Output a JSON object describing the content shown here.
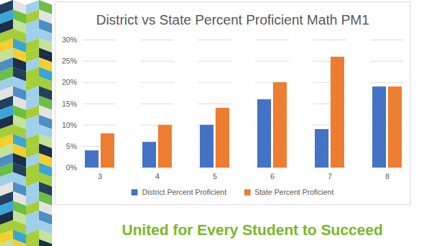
{
  "chart_data": {
    "type": "bar",
    "title": "District vs State Percent Proficient Math PM1",
    "categories": [
      "3",
      "4",
      "5",
      "6",
      "7",
      "8"
    ],
    "series": [
      {
        "name": "District Percent Proficient",
        "color": "#4472c4",
        "values": [
          4,
          6,
          10,
          16,
          9,
          19
        ]
      },
      {
        "name": "State Percent Proficient",
        "color": "#ed7d31",
        "values": [
          8,
          10,
          14,
          20,
          26,
          19
        ]
      }
    ],
    "ylim": [
      0,
      30
    ],
    "yticks": [
      {
        "value": 0,
        "label": "0%"
      },
      {
        "value": 5,
        "label": "5%"
      },
      {
        "value": 10,
        "label": "10%"
      },
      {
        "value": 15,
        "label": "15%"
      },
      {
        "value": 20,
        "label": "20%"
      },
      {
        "value": 25,
        "label": "25%"
      },
      {
        "value": 30,
        "label": "30%"
      }
    ],
    "grid": true,
    "legend": "bottom",
    "caption": "United for Every Student to Succeed"
  }
}
